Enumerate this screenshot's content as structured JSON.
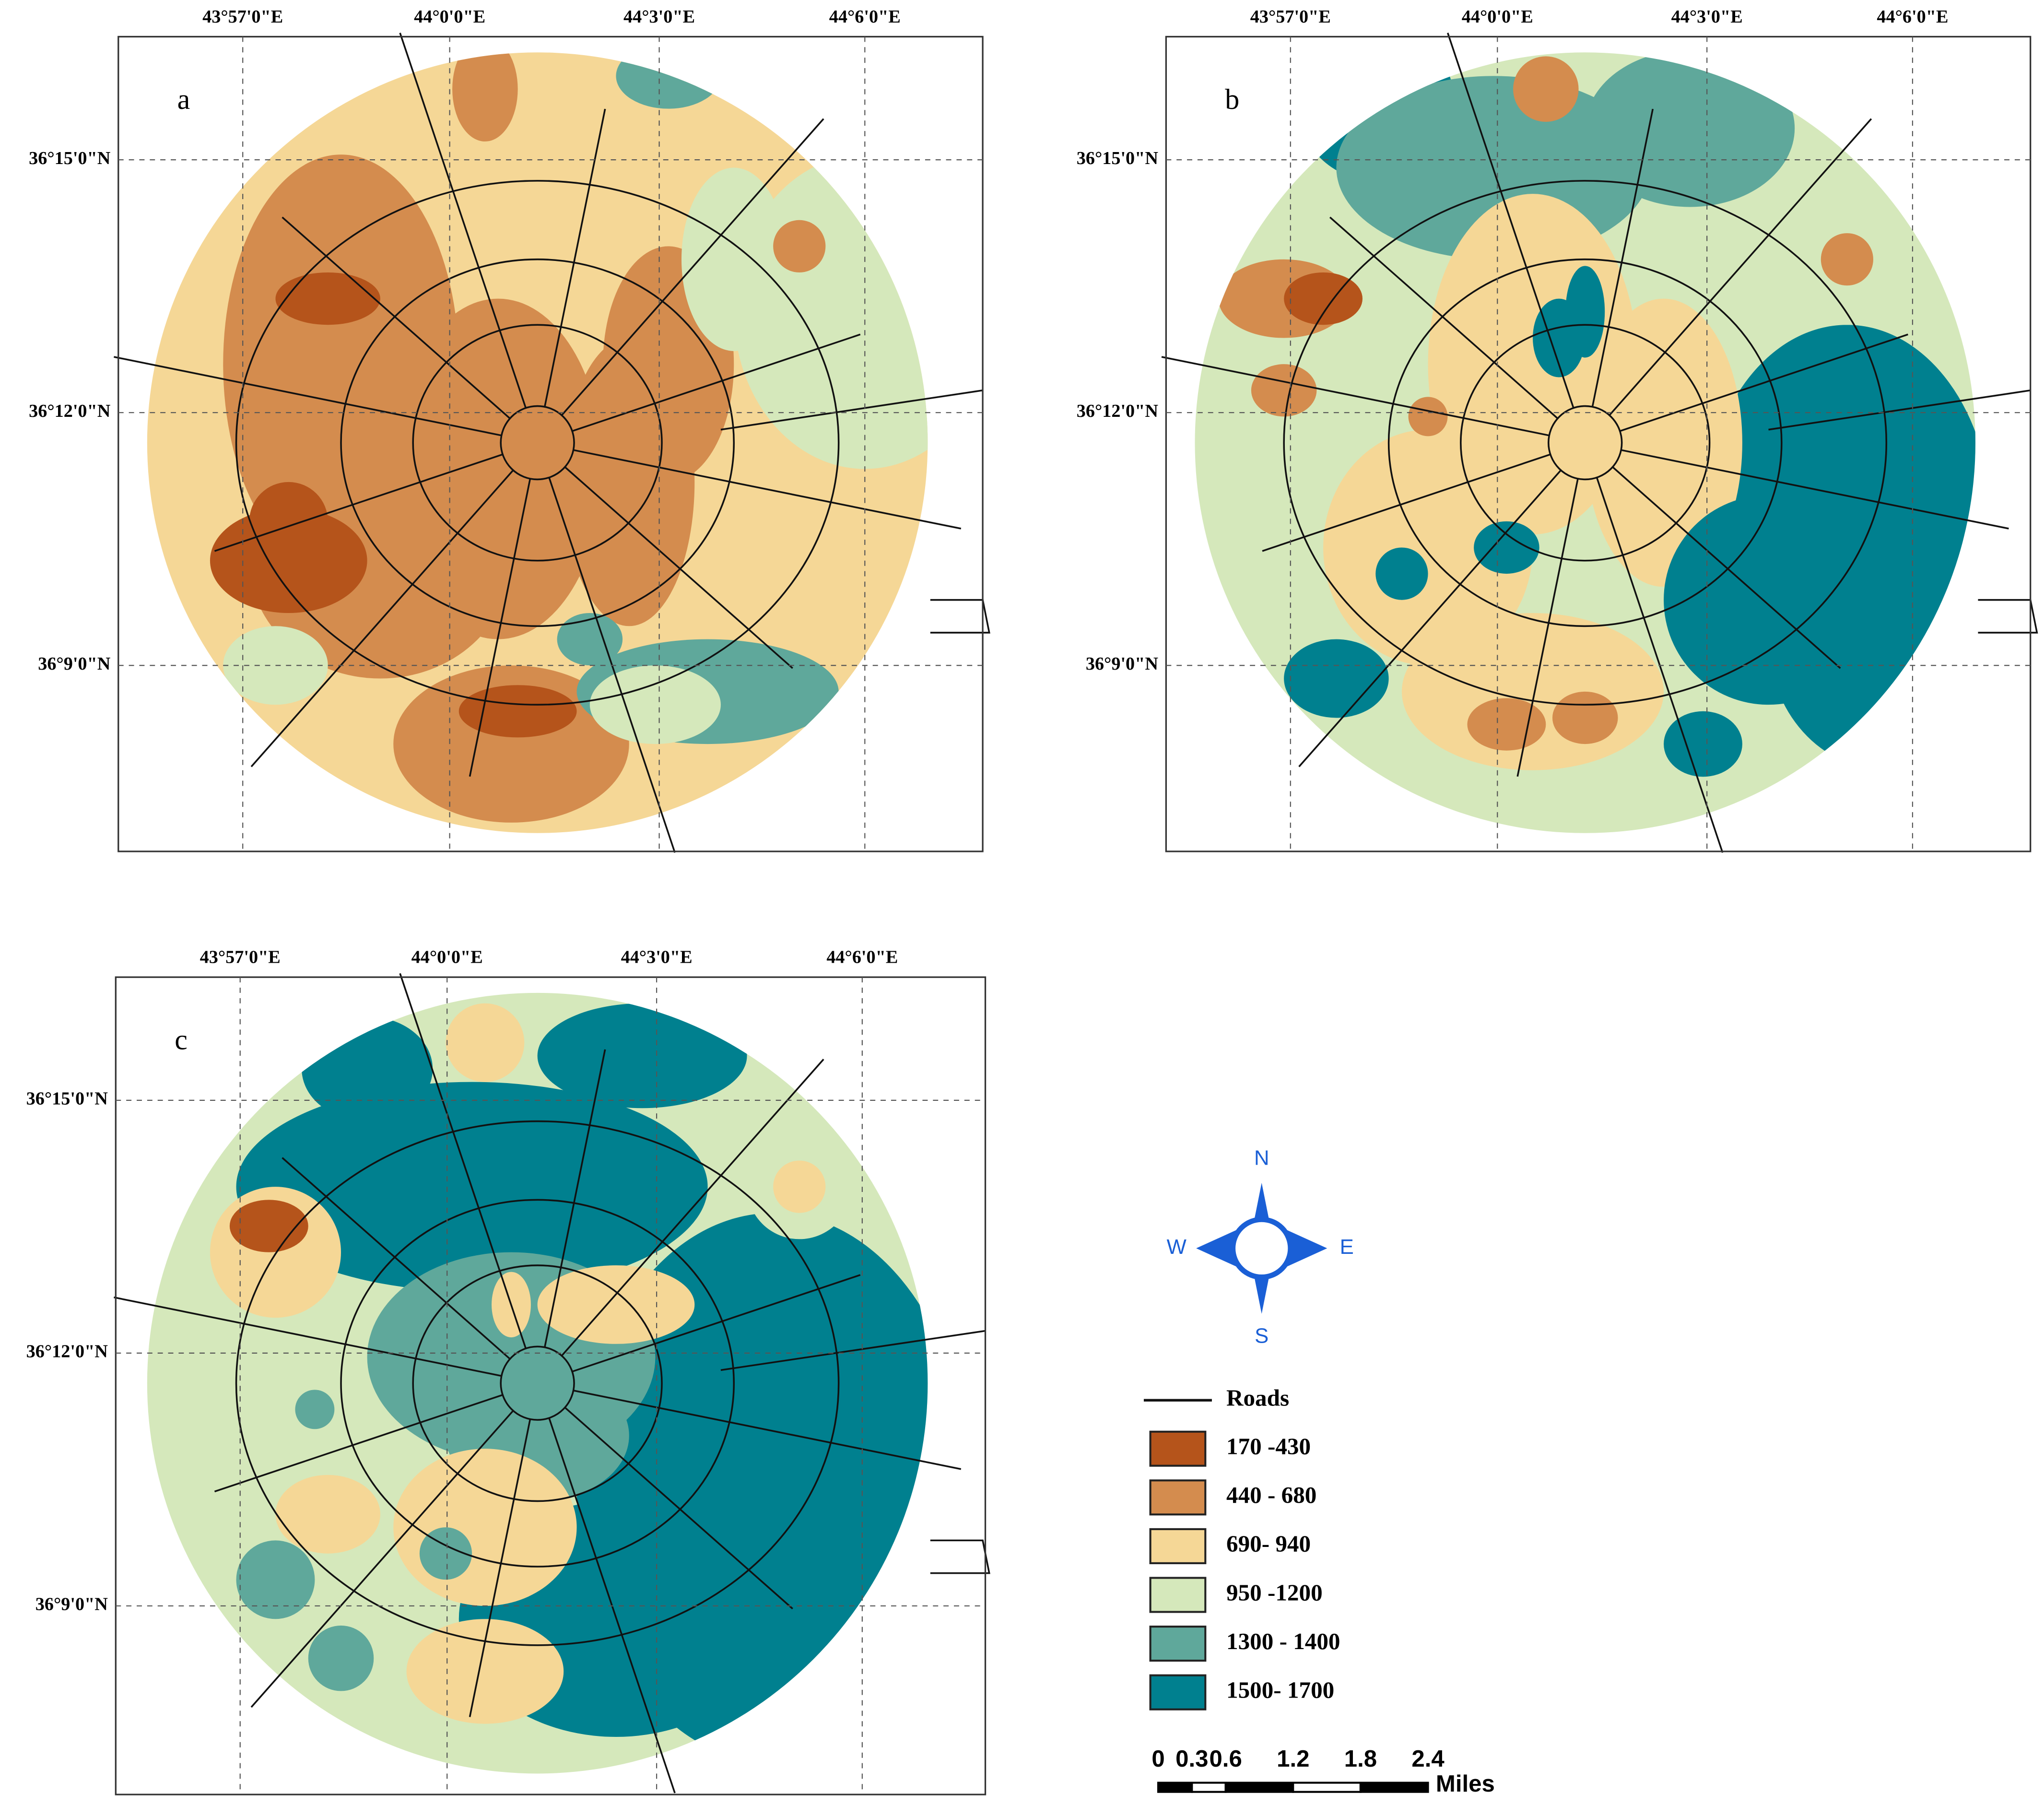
{
  "panels": [
    {
      "label": "a"
    },
    {
      "label": "b"
    },
    {
      "label": "c"
    }
  ],
  "lon_ticks": [
    "43°57'0\"E",
    "44°0'0\"E",
    "44°3'0\"E",
    "44°6'0\"E"
  ],
  "lat_ticks": [
    "36°15'0\"N",
    "36°12'0\"N",
    "36°9'0\"N"
  ],
  "legend": {
    "roads": "Roads",
    "classes": [
      {
        "label": "170 -430",
        "color": "#b5541b"
      },
      {
        "label": "440 - 680",
        "color": "#d48c4e"
      },
      {
        "label": "690- 940",
        "color": "#f5d796"
      },
      {
        "label": "950 -1200",
        "color": "#d5e8bb"
      },
      {
        "label": "1300 - 1400",
        "color": "#5fa89b"
      },
      {
        "label": "1500- 1700",
        "color": "#00808f"
      }
    ]
  },
  "compass": {
    "n": "N",
    "w": "W",
    "e": "E",
    "s": "S"
  },
  "scale_bar": {
    "ticks": [
      0,
      0.3,
      0.6,
      1.2,
      1.8,
      2.4
    ],
    "unit": "Miles"
  }
}
